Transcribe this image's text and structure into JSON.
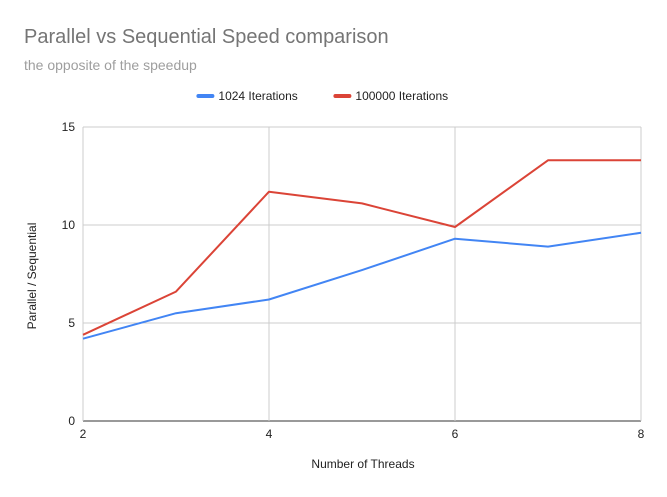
{
  "chart_data": {
    "type": "line",
    "title": "Parallel vs Sequential Speed comparison",
    "subtitle": "the opposite of the speedup",
    "xlabel": "Number of Threads",
    "ylabel": "Parallel / Sequential",
    "x": [
      2,
      3,
      4,
      5,
      6,
      7,
      8
    ],
    "xlim": [
      2,
      8
    ],
    "ylim": [
      0,
      15
    ],
    "x_ticks": [
      "2",
      "4",
      "6",
      "8"
    ],
    "y_ticks": [
      "0",
      "5",
      "10",
      "15"
    ],
    "grid": true,
    "legend_position": "top",
    "series": [
      {
        "name": "1024 Iterations",
        "color": "#4285f4",
        "values": [
          4.2,
          5.5,
          6.2,
          7.7,
          9.3,
          8.9,
          9.6
        ]
      },
      {
        "name": "100000 Iterations",
        "color": "#db4437",
        "values": [
          4.4,
          6.6,
          11.7,
          11.1,
          9.9,
          13.3,
          13.3
        ]
      }
    ]
  }
}
